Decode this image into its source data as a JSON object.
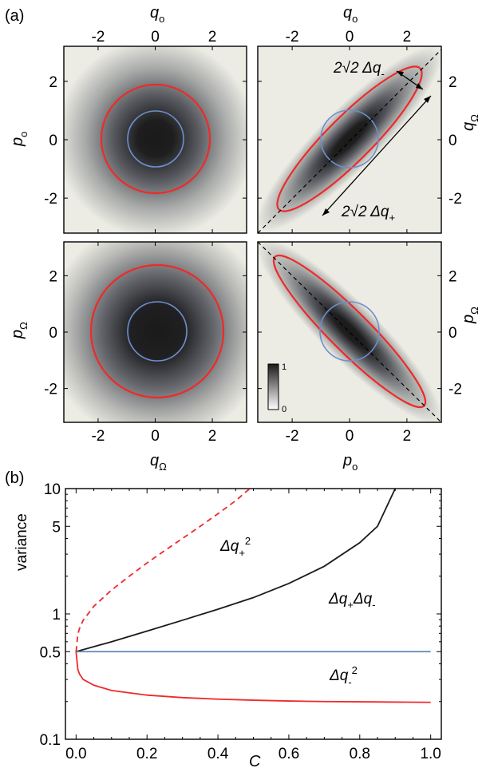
{
  "panel_a": {
    "label": "(a)",
    "x_ticks": [
      "-2",
      "0",
      "2"
    ],
    "y_ticks": [
      "2",
      "0",
      "-2"
    ],
    "tick_values": [
      -2,
      0,
      2
    ],
    "range": [
      -3.2,
      3.2
    ],
    "axis_labels": {
      "top_left_top": {
        "main": "q",
        "sub": "o"
      },
      "top_right_top": {
        "main": "q",
        "sub": "o"
      },
      "top_left_left": {
        "main": "p",
        "sub": "o"
      },
      "top_right_right": {
        "main": "q",
        "sub": "Ω"
      },
      "bottom_left_left": {
        "main": "p",
        "sub": "Ω"
      },
      "bottom_right_right": {
        "main": "p",
        "sub": "Ω"
      },
      "bottom_left_bottom": {
        "main": "q",
        "sub": "Ω"
      },
      "bottom_right_bottom": {
        "main": "p",
        "sub": "o"
      }
    },
    "annotations": {
      "dq_minus": {
        "pre": "2√2 Δq",
        "sub": "-"
      },
      "dq_plus": {
        "pre": "2√2 Δq",
        "sub": "+"
      }
    },
    "colorbar": {
      "max": "1",
      "min": "0"
    },
    "colors": {
      "red": "#ee2a2a",
      "blue": "#6d8fcc",
      "dark": "#1a1a1a",
      "background": "#ecece4"
    }
  },
  "panel_b": {
    "label": "(b)"
  },
  "chart_data": {
    "type": "line",
    "xlabel": "C",
    "ylabel": "variance",
    "xlim": [
      -0.03,
      1.03
    ],
    "ylim": [
      0.1,
      10
    ],
    "yscale": "log",
    "x_ticks": [
      "0.0",
      "0.2",
      "0.4",
      "0.6",
      "0.8",
      "1.0"
    ],
    "y_ticks": [
      "10",
      "5",
      "1",
      "0.5",
      "0.1"
    ],
    "y_tick_values": [
      10,
      5,
      1,
      0.5,
      0.1
    ],
    "series": [
      {
        "name": "Δq+²",
        "style": "dashed",
        "color": "#ee2a2a",
        "points": [
          [
            0,
            0.5
          ],
          [
            0.005,
            0.69
          ],
          [
            0.01,
            0.77
          ],
          [
            0.02,
            0.89
          ],
          [
            0.05,
            1.15
          ],
          [
            0.1,
            1.55
          ],
          [
            0.15,
            2.0
          ],
          [
            0.2,
            2.55
          ],
          [
            0.25,
            3.2
          ],
          [
            0.3,
            4.0
          ],
          [
            0.35,
            5.0
          ],
          [
            0.4,
            6.3
          ],
          [
            0.45,
            8.0
          ],
          [
            0.49,
            10.0
          ]
        ]
      },
      {
        "name": "Δq+Δq-",
        "style": "solid",
        "color": "#1a1a1a",
        "points": [
          [
            0,
            0.5
          ],
          [
            0.1,
            0.6
          ],
          [
            0.2,
            0.73
          ],
          [
            0.3,
            0.89
          ],
          [
            0.4,
            1.09
          ],
          [
            0.5,
            1.35
          ],
          [
            0.6,
            1.75
          ],
          [
            0.7,
            2.4
          ],
          [
            0.8,
            3.7
          ],
          [
            0.85,
            5.0
          ],
          [
            0.9,
            10.0
          ]
        ]
      },
      {
        "name": "",
        "style": "solid",
        "color": "#5e86b8",
        "points": [
          [
            0,
            0.5
          ],
          [
            1.0,
            0.5
          ]
        ]
      },
      {
        "name": "Δq-²",
        "style": "solid",
        "color": "#ee2a2a",
        "points": [
          [
            0,
            0.5
          ],
          [
            0.005,
            0.36
          ],
          [
            0.01,
            0.33
          ],
          [
            0.02,
            0.3
          ],
          [
            0.05,
            0.27
          ],
          [
            0.1,
            0.245
          ],
          [
            0.2,
            0.225
          ],
          [
            0.3,
            0.215
          ],
          [
            0.4,
            0.209
          ],
          [
            0.5,
            0.205
          ],
          [
            0.6,
            0.202
          ],
          [
            0.7,
            0.2
          ],
          [
            0.8,
            0.199
          ],
          [
            0.9,
            0.198
          ],
          [
            1.0,
            0.197
          ]
        ]
      }
    ],
    "labels": [
      {
        "main": "Δq",
        "sub": "+",
        "sup": "2"
      },
      {
        "main": "Δq",
        "sub": "+",
        "rest": "Δq",
        "sub2": "-"
      },
      {
        "main": "Δq",
        "sub": "-",
        "sup": "2"
      }
    ]
  }
}
